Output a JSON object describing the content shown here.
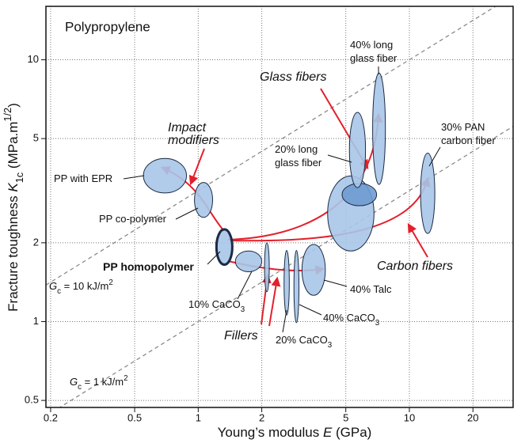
{
  "chart_data": {
    "type": "ellipse",
    "title": "Polypropylene",
    "x_label": [
      {
        "text": "Young’s modulus "
      },
      {
        "text": "E",
        "style": "italic"
      },
      {
        "text": " (GPa)"
      }
    ],
    "y_label": [
      {
        "text": "Fracture toughness "
      },
      {
        "text": "K",
        "style": "italic"
      },
      {
        "text": "1c",
        "script": "sub"
      },
      {
        "text": " (MPa.m"
      },
      {
        "text": "1/2",
        "script": "sup"
      },
      {
        "text": ")"
      }
    ],
    "x_log": true,
    "y_log": true,
    "grid": true,
    "xlim": [
      0.19,
      31
    ],
    "ylim": [
      0.47,
      16
    ],
    "xticks": [
      0.2,
      0.5,
      1,
      2,
      5,
      10,
      20
    ],
    "yticks": [
      0.5,
      1,
      2,
      5,
      10
    ],
    "fill_color": "#a9c5e8",
    "outline_color": "#1c2b44",
    "regions": [
      {
        "name": [
          [
            {
              "text": "PP with EPR"
            }
          ]
        ],
        "x": [
          0.55,
          0.88
        ],
        "y": [
          3.1,
          4.2
        ]
      },
      {
        "name": [
          [
            {
              "text": "PP co-polymer"
            }
          ]
        ],
        "x": [
          0.96,
          1.17
        ],
        "y": [
          2.5,
          3.4
        ]
      },
      {
        "name": [
          [
            {
              "text": "PP homopolymer"
            }
          ]
        ],
        "x": [
          1.22,
          1.45
        ],
        "y": [
          1.65,
          2.25
        ],
        "emphasis": true
      },
      {
        "name": [
          [
            {
              "text": "10% CaCO"
            },
            {
              "text": "3",
              "script": "sub"
            }
          ]
        ],
        "x": [
          1.5,
          2.0
        ],
        "y": [
          1.55,
          1.86
        ]
      },
      {
        "name": null,
        "x": [
          2.06,
          2.17
        ],
        "y": [
          1.3,
          2.0
        ]
      },
      {
        "name": [
          [
            {
              "text": "20% CaCO"
            },
            {
              "text": "3",
              "script": "sub"
            }
          ]
        ],
        "x": [
          2.55,
          2.7
        ],
        "y": [
          1.06,
          1.87
        ]
      },
      {
        "name": [
          [
            {
              "text": "40% CaCO"
            },
            {
              "text": "3",
              "script": "sub"
            }
          ]
        ],
        "x": [
          2.84,
          3.0
        ],
        "y": [
          0.99,
          1.87
        ]
      },
      {
        "name": [
          [
            {
              "text": "40% Talc"
            }
          ]
        ],
        "x": [
          3.1,
          4.0
        ],
        "y": [
          1.26,
          1.97
        ]
      },
      {
        "name": null,
        "x": [
          4.1,
          6.8
        ],
        "y": [
          1.86,
          3.6
        ]
      },
      {
        "name": null,
        "x": [
          4.8,
          7.0
        ],
        "y": [
          2.77,
          3.37
        ],
        "color": "#6f9bd0"
      },
      {
        "name": [
          [
            {
              "text": "20% long"
            }
          ],
          [
            {
              "text": "glass fiber"
            }
          ]
        ],
        "x": [
          5.2,
          6.2
        ],
        "y": [
          3.25,
          6.3
        ]
      },
      {
        "name": [
          [
            {
              "text": "40% long"
            }
          ],
          [
            {
              "text": "glass fiber"
            }
          ]
        ],
        "x": [
          6.7,
          7.7
        ],
        "y": [
          3.34,
          8.9
        ]
      },
      {
        "name": [
          [
            {
              "text": "30% PAN"
            }
          ],
          [
            {
              "text": "carbon fiber"
            }
          ]
        ],
        "x": [
          11.3,
          13.2
        ],
        "y": [
          2.17,
          4.4
        ]
      }
    ],
    "guidelines": [
      {
        "value": 10,
        "label": [
          {
            "text": "G",
            "style": "italic"
          },
          {
            "text": "c",
            "script": "sub"
          },
          {
            "text": " = 10 kJ/m"
          },
          {
            "text": "2",
            "script": "sup"
          }
        ]
      },
      {
        "value": 1,
        "label": [
          {
            "text": "G",
            "style": "italic"
          },
          {
            "text": "c",
            "script": "sub"
          },
          {
            "text": " = 1 kJ/m"
          },
          {
            "text": "2",
            "script": "sup"
          }
        ]
      }
    ],
    "guideline_color": "#8a8a8a",
    "annotation_color": "#e3202b",
    "annotations": [
      [
        "Impact",
        "modifiers"
      ],
      [
        "Glass fibers"
      ],
      [
        "Carbon fibers"
      ],
      [
        "Fillers"
      ]
    ]
  }
}
